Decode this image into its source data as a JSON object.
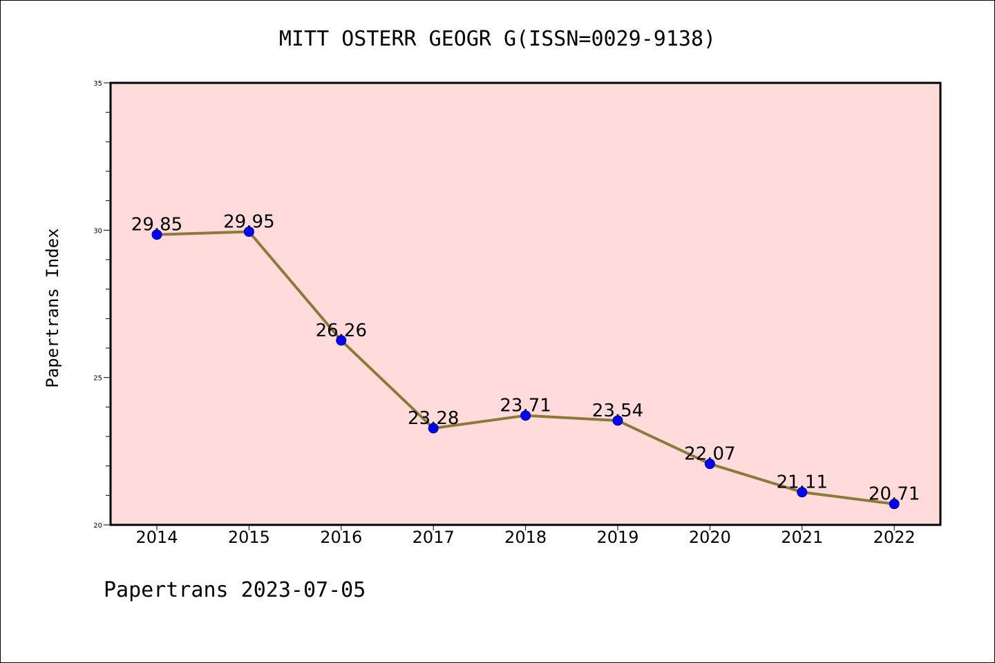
{
  "chart_data": {
    "type": "line",
    "title": "MITT OSTERR GEOGR G(ISSN=0029-9138)",
    "xlabel": "",
    "ylabel": "Papertrans Index",
    "footer": "Papertrans 2023-07-05",
    "categories": [
      "2014",
      "2015",
      "2016",
      "2017",
      "2018",
      "2019",
      "2020",
      "2021",
      "2022"
    ],
    "values": [
      29.85,
      29.95,
      26.26,
      23.28,
      23.71,
      23.54,
      22.07,
      21.11,
      20.71
    ],
    "data_labels": [
      "29.85",
      "29.95",
      "26.26",
      "23.28",
      "23.71",
      "23.54",
      "22.07",
      "21.11",
      "20.71"
    ],
    "ylim": [
      20,
      35
    ],
    "yticks": [
      "20",
      "25",
      "30",
      "35"
    ],
    "grid": false,
    "colors": {
      "plot_background": "#FFDCDB",
      "line": "#8C7A3A",
      "marker": "#0000FF",
      "axis": "#000000"
    }
  }
}
